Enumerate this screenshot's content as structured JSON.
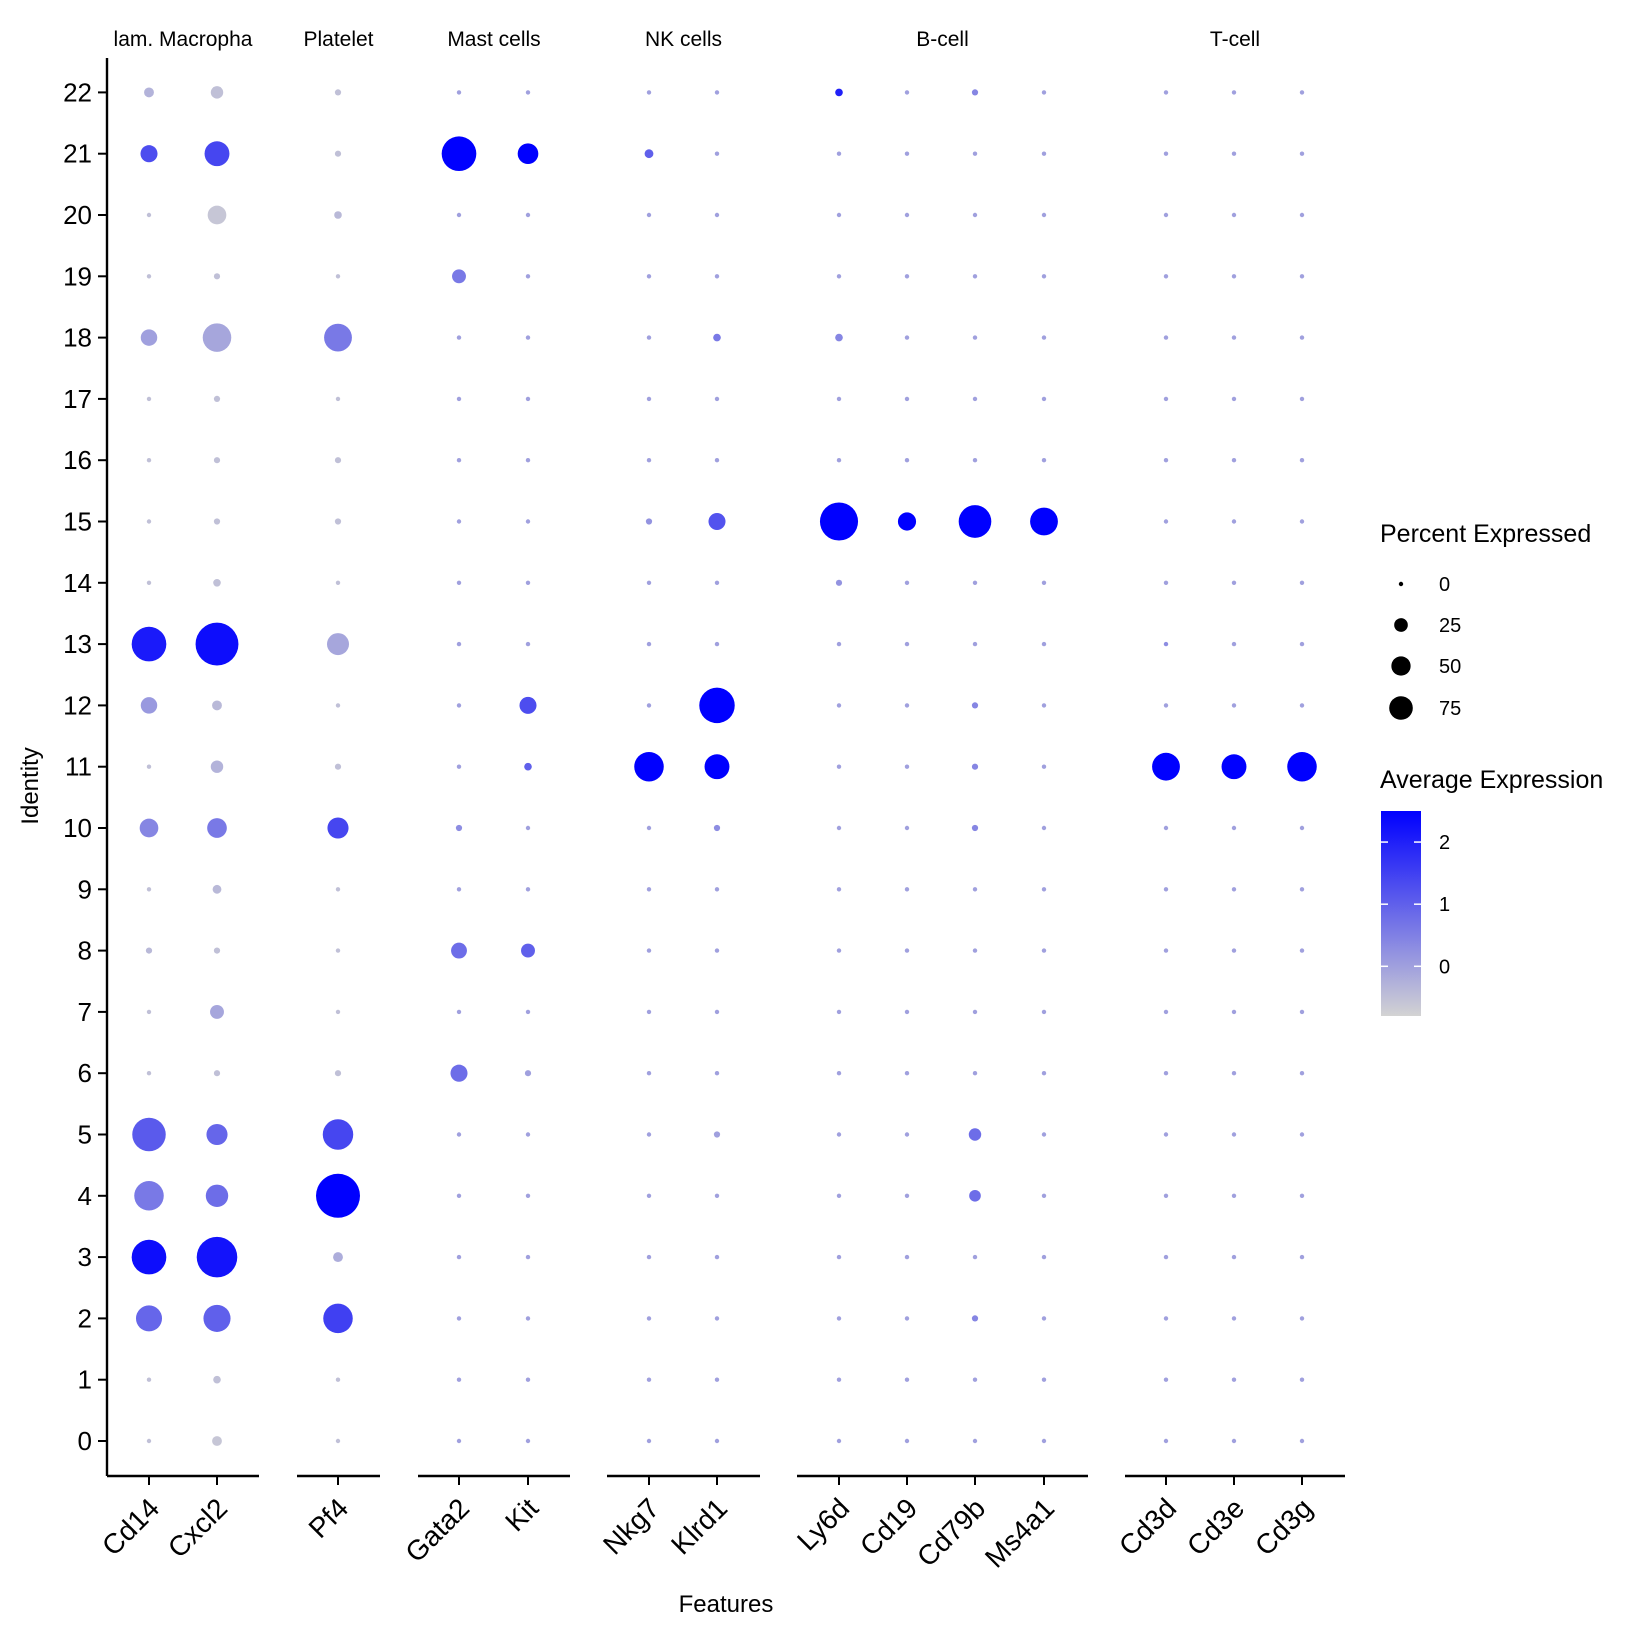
{
  "chart_data": {
    "type": "scatter",
    "subtype": "dot-plot",
    "xlabel": "Features",
    "ylabel": "Identity",
    "identities": [
      "0",
      "1",
      "2",
      "3",
      "4",
      "5",
      "6",
      "7",
      "8",
      "9",
      "10",
      "11",
      "12",
      "13",
      "14",
      "15",
      "16",
      "17",
      "18",
      "19",
      "20",
      "21",
      "22"
    ],
    "panels": [
      {
        "title": "lam. Macropha",
        "features": [
          "Cd14",
          "Cxcl2"
        ]
      },
      {
        "title": "Platelet",
        "features": [
          "Pf4"
        ]
      },
      {
        "title": "Mast cells",
        "features": [
          "Gata2",
          "Kit"
        ]
      },
      {
        "title": "NK cells",
        "features": [
          "Nkg7",
          "Klrd1"
        ]
      },
      {
        "title": "B-cell",
        "features": [
          "Ly6d",
          "Cd19",
          "Cd79b",
          "Ms4a1"
        ]
      },
      {
        "title": "T-cell",
        "features": [
          "Cd3d",
          "Cd3e",
          "Cd3g"
        ]
      }
    ],
    "points": [
      {
        "feature": "Cd14",
        "identity": "0",
        "pct": 1,
        "avg": -0.5
      },
      {
        "feature": "Cd14",
        "identity": "1",
        "pct": 1,
        "avg": -0.5
      },
      {
        "feature": "Cd14",
        "identity": "2",
        "pct": 35,
        "avg": 0.9
      },
      {
        "feature": "Cd14",
        "identity": "3",
        "pct": 62,
        "avg": 2.3
      },
      {
        "feature": "Cd14",
        "identity": "4",
        "pct": 45,
        "avg": 0.6
      },
      {
        "feature": "Cd14",
        "identity": "5",
        "pct": 58,
        "avg": 1.1
      },
      {
        "feature": "Cd14",
        "identity": "6",
        "pct": 1,
        "avg": -0.5
      },
      {
        "feature": "Cd14",
        "identity": "7",
        "pct": 1,
        "avg": -0.5
      },
      {
        "feature": "Cd14",
        "identity": "8",
        "pct": 2,
        "avg": -0.4
      },
      {
        "feature": "Cd14",
        "identity": "9",
        "pct": 1,
        "avg": -0.5
      },
      {
        "feature": "Cd14",
        "identity": "10",
        "pct": 18,
        "avg": 0.4
      },
      {
        "feature": "Cd14",
        "identity": "11",
        "pct": 1,
        "avg": -0.5
      },
      {
        "feature": "Cd14",
        "identity": "12",
        "pct": 14,
        "avg": 0.1
      },
      {
        "feature": "Cd14",
        "identity": "13",
        "pct": 62,
        "avg": 2.1
      },
      {
        "feature": "Cd14",
        "identity": "14",
        "pct": 1,
        "avg": -0.5
      },
      {
        "feature": "Cd14",
        "identity": "15",
        "pct": 1,
        "avg": -0.5
      },
      {
        "feature": "Cd14",
        "identity": "16",
        "pct": 1,
        "avg": -0.5
      },
      {
        "feature": "Cd14",
        "identity": "17",
        "pct": 1,
        "avg": -0.5
      },
      {
        "feature": "Cd14",
        "identity": "18",
        "pct": 14,
        "avg": 0.0
      },
      {
        "feature": "Cd14",
        "identity": "19",
        "pct": 1,
        "avg": -0.5
      },
      {
        "feature": "Cd14",
        "identity": "20",
        "pct": 1,
        "avg": -0.5
      },
      {
        "feature": "Cd14",
        "identity": "21",
        "pct": 15,
        "avg": 1.3
      },
      {
        "feature": "Cd14",
        "identity": "22",
        "pct": 5,
        "avg": -0.3
      },
      {
        "feature": "Cxcl2",
        "identity": "0",
        "pct": 5,
        "avg": -0.6
      },
      {
        "feature": "Cxcl2",
        "identity": "1",
        "pct": 3,
        "avg": -0.5
      },
      {
        "feature": "Cxcl2",
        "identity": "2",
        "pct": 38,
        "avg": 1.0
      },
      {
        "feature": "Cxcl2",
        "identity": "3",
        "pct": 85,
        "avg": 2.2
      },
      {
        "feature": "Cxcl2",
        "identity": "4",
        "pct": 26,
        "avg": 0.8
      },
      {
        "feature": "Cxcl2",
        "identity": "5",
        "pct": 23,
        "avg": 0.9
      },
      {
        "feature": "Cxcl2",
        "identity": "6",
        "pct": 2,
        "avg": -0.5
      },
      {
        "feature": "Cxcl2",
        "identity": "7",
        "pct": 10,
        "avg": -0.1
      },
      {
        "feature": "Cxcl2",
        "identity": "8",
        "pct": 2,
        "avg": -0.5
      },
      {
        "feature": "Cxcl2",
        "identity": "9",
        "pct": 4,
        "avg": -0.4
      },
      {
        "feature": "Cxcl2",
        "identity": "10",
        "pct": 20,
        "avg": 0.6
      },
      {
        "feature": "Cxcl2",
        "identity": "11",
        "pct": 8,
        "avg": -0.3
      },
      {
        "feature": "Cxcl2",
        "identity": "12",
        "pct": 5,
        "avg": -0.4
      },
      {
        "feature": "Cxcl2",
        "identity": "13",
        "pct": 95,
        "avg": 2.3
      },
      {
        "feature": "Cxcl2",
        "identity": "14",
        "pct": 3,
        "avg": -0.5
      },
      {
        "feature": "Cxcl2",
        "identity": "15",
        "pct": 2,
        "avg": -0.5
      },
      {
        "feature": "Cxcl2",
        "identity": "16",
        "pct": 2,
        "avg": -0.5
      },
      {
        "feature": "Cxcl2",
        "identity": "17",
        "pct": 2,
        "avg": -0.5
      },
      {
        "feature": "Cxcl2",
        "identity": "18",
        "pct": 42,
        "avg": -0.1
      },
      {
        "feature": "Cxcl2",
        "identity": "19",
        "pct": 2,
        "avg": -0.5
      },
      {
        "feature": "Cxcl2",
        "identity": "20",
        "pct": 18,
        "avg": -0.6
      },
      {
        "feature": "Cxcl2",
        "identity": "21",
        "pct": 32,
        "avg": 1.4
      },
      {
        "feature": "Cxcl2",
        "identity": "22",
        "pct": 8,
        "avg": -0.5
      },
      {
        "feature": "Pf4",
        "identity": "0",
        "pct": 1,
        "avg": -0.5
      },
      {
        "feature": "Pf4",
        "identity": "1",
        "pct": 1,
        "avg": -0.5
      },
      {
        "feature": "Pf4",
        "identity": "2",
        "pct": 45,
        "avg": 1.5
      },
      {
        "feature": "Pf4",
        "identity": "3",
        "pct": 5,
        "avg": -0.2
      },
      {
        "feature": "Pf4",
        "identity": "4",
        "pct": 100,
        "avg": 2.5
      },
      {
        "feature": "Pf4",
        "identity": "5",
        "pct": 48,
        "avg": 1.4
      },
      {
        "feature": "Pf4",
        "identity": "6",
        "pct": 2,
        "avg": -0.5
      },
      {
        "feature": "Pf4",
        "identity": "7",
        "pct": 1,
        "avg": -0.5
      },
      {
        "feature": "Pf4",
        "identity": "8",
        "pct": 1,
        "avg": -0.5
      },
      {
        "feature": "Pf4",
        "identity": "9",
        "pct": 1,
        "avg": -0.5
      },
      {
        "feature": "Pf4",
        "identity": "10",
        "pct": 23,
        "avg": 1.4
      },
      {
        "feature": "Pf4",
        "identity": "11",
        "pct": 2,
        "avg": -0.5
      },
      {
        "feature": "Pf4",
        "identity": "12",
        "pct": 1,
        "avg": -0.5
      },
      {
        "feature": "Pf4",
        "identity": "13",
        "pct": 25,
        "avg": -0.1
      },
      {
        "feature": "Pf4",
        "identity": "14",
        "pct": 1,
        "avg": -0.5
      },
      {
        "feature": "Pf4",
        "identity": "15",
        "pct": 2,
        "avg": -0.5
      },
      {
        "feature": "Pf4",
        "identity": "16",
        "pct": 2,
        "avg": -0.5
      },
      {
        "feature": "Pf4",
        "identity": "17",
        "pct": 1,
        "avg": -0.5
      },
      {
        "feature": "Pf4",
        "identity": "18",
        "pct": 40,
        "avg": 0.6
      },
      {
        "feature": "Pf4",
        "identity": "19",
        "pct": 1,
        "avg": -0.5
      },
      {
        "feature": "Pf4",
        "identity": "20",
        "pct": 3,
        "avg": -0.4
      },
      {
        "feature": "Pf4",
        "identity": "21",
        "pct": 2,
        "avg": -0.5
      },
      {
        "feature": "Pf4",
        "identity": "22",
        "pct": 2,
        "avg": -0.5
      },
      {
        "feature": "Gata2",
        "identity": "6",
        "pct": 15,
        "avg": 0.8
      },
      {
        "feature": "Gata2",
        "identity": "8",
        "pct": 13,
        "avg": 0.8
      },
      {
        "feature": "Gata2",
        "identity": "10",
        "pct": 2,
        "avg": 0.3
      },
      {
        "feature": "Gata2",
        "identity": "19",
        "pct": 10,
        "avg": 0.6
      },
      {
        "feature": "Gata2",
        "identity": "21",
        "pct": 62,
        "avg": 2.5
      },
      {
        "feature": "Kit",
        "identity": "6",
        "pct": 2,
        "avg": 0.0
      },
      {
        "feature": "Kit",
        "identity": "8",
        "pct": 10,
        "avg": 1.0
      },
      {
        "feature": "Kit",
        "identity": "9",
        "pct": 1,
        "avg": 0.0
      },
      {
        "feature": "Kit",
        "identity": "11",
        "pct": 3,
        "avg": 1.0
      },
      {
        "feature": "Kit",
        "identity": "12",
        "pct": 15,
        "avg": 1.3
      },
      {
        "feature": "Kit",
        "identity": "21",
        "pct": 22,
        "avg": 2.5
      },
      {
        "feature": "Nkg7",
        "identity": "11",
        "pct": 45,
        "avg": 2.5
      },
      {
        "feature": "Nkg7",
        "identity": "15",
        "pct": 2,
        "avg": 0.2
      },
      {
        "feature": "Nkg7",
        "identity": "21",
        "pct": 4,
        "avg": 1.0
      },
      {
        "feature": "Klrd1",
        "identity": "5",
        "pct": 2,
        "avg": 0.0
      },
      {
        "feature": "Klrd1",
        "identity": "10",
        "pct": 2,
        "avg": 0.3
      },
      {
        "feature": "Klrd1",
        "identity": "11",
        "pct": 32,
        "avg": 2.5
      },
      {
        "feature": "Klrd1",
        "identity": "12",
        "pct": 65,
        "avg": 2.5
      },
      {
        "feature": "Klrd1",
        "identity": "15",
        "pct": 15,
        "avg": 1.2
      },
      {
        "feature": "Klrd1",
        "identity": "18",
        "pct": 3,
        "avg": 0.6
      },
      {
        "feature": "Ly6d",
        "identity": "14",
        "pct": 2,
        "avg": 0.2
      },
      {
        "feature": "Ly6d",
        "identity": "15",
        "pct": 75,
        "avg": 2.5
      },
      {
        "feature": "Ly6d",
        "identity": "18",
        "pct": 3,
        "avg": 0.4
      },
      {
        "feature": "Ly6d",
        "identity": "22",
        "pct": 3,
        "avg": 2.0
      },
      {
        "feature": "Cd19",
        "identity": "15",
        "pct": 17,
        "avg": 2.5
      },
      {
        "feature": "Cd79b",
        "identity": "2",
        "pct": 2,
        "avg": 0.4
      },
      {
        "feature": "Cd79b",
        "identity": "4",
        "pct": 7,
        "avg": 0.8
      },
      {
        "feature": "Cd79b",
        "identity": "5",
        "pct": 8,
        "avg": 0.8
      },
      {
        "feature": "Cd79b",
        "identity": "10",
        "pct": 2,
        "avg": 0.4
      },
      {
        "feature": "Cd79b",
        "identity": "11",
        "pct": 2,
        "avg": 0.4
      },
      {
        "feature": "Cd79b",
        "identity": "12",
        "pct": 2,
        "avg": 0.4
      },
      {
        "feature": "Cd79b",
        "identity": "15",
        "pct": 55,
        "avg": 2.5
      },
      {
        "feature": "Cd79b",
        "identity": "22",
        "pct": 2,
        "avg": 0.4
      },
      {
        "feature": "Ms4a1",
        "identity": "15",
        "pct": 40,
        "avg": 2.5
      },
      {
        "feature": "Cd3d",
        "identity": "11",
        "pct": 40,
        "avg": 2.5
      },
      {
        "feature": "Cd3d",
        "identity": "13",
        "pct": 1,
        "avg": 0.3
      },
      {
        "feature": "Cd3e",
        "identity": "11",
        "pct": 32,
        "avg": 2.5
      },
      {
        "feature": "Cd3g",
        "identity": "11",
        "pct": 45,
        "avg": 2.5
      }
    ],
    "default_point": {
      "pct": 1,
      "avg": 0.0
    },
    "legend_size": {
      "title": "Percent Expressed",
      "values": [
        0,
        25,
        50,
        75
      ],
      "placement": "right"
    },
    "legend_color": {
      "title": "Average Expression",
      "ticks": [
        2,
        1,
        0
      ],
      "range": [
        -0.8,
        2.5
      ],
      "low_color": "#D3D3D3",
      "high_color": "#0000FF",
      "placement": "right"
    }
  }
}
